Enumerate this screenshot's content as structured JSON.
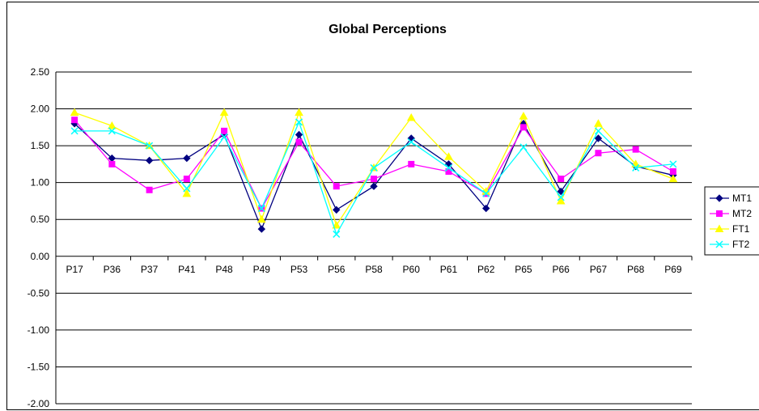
{
  "chart_data": {
    "type": "line",
    "title": "Global Perceptions",
    "xlabel": "",
    "ylabel": "",
    "ylim": [
      -2.0,
      2.5
    ],
    "yticks": [
      "2.50",
      "2.00",
      "1.50",
      "1.00",
      "0.50",
      "0.00",
      "-0.50",
      "-1.00",
      "-1.50",
      "-2.00"
    ],
    "grid": true,
    "legend_position": "right",
    "categories": [
      "P17",
      "P36",
      "P37",
      "P41",
      "P48",
      "P49",
      "P53",
      "P56",
      "P58",
      "P60",
      "P61",
      "P62",
      "P65",
      "P66",
      "P67",
      "P68",
      "P69"
    ],
    "series": [
      {
        "name": "MT1",
        "color": "#000080",
        "marker": "diamond",
        "values": [
          1.8,
          1.33,
          1.3,
          1.33,
          1.65,
          0.37,
          1.65,
          0.63,
          0.95,
          1.6,
          1.25,
          0.65,
          1.8,
          0.88,
          1.6,
          1.22,
          1.1
        ]
      },
      {
        "name": "MT2",
        "color": "#FF00FF",
        "marker": "square",
        "values": [
          1.85,
          1.25,
          0.9,
          1.05,
          1.7,
          0.65,
          1.55,
          0.95,
          1.05,
          1.25,
          1.15,
          0.85,
          1.75,
          1.05,
          1.4,
          1.45,
          1.15
        ]
      },
      {
        "name": "FT1",
        "color": "#FFFF00",
        "marker": "triangle",
        "values": [
          1.95,
          1.77,
          1.5,
          0.85,
          1.95,
          0.5,
          1.95,
          0.42,
          1.2,
          1.88,
          1.35,
          0.88,
          1.9,
          0.75,
          1.8,
          1.25,
          1.05
        ]
      },
      {
        "name": "FT2",
        "color": "#00FFFF",
        "marker": "x",
        "values": [
          1.7,
          1.7,
          1.5,
          0.92,
          1.62,
          0.65,
          1.82,
          0.3,
          1.2,
          1.55,
          1.2,
          0.85,
          1.48,
          0.8,
          1.7,
          1.2,
          1.25
        ]
      }
    ]
  }
}
